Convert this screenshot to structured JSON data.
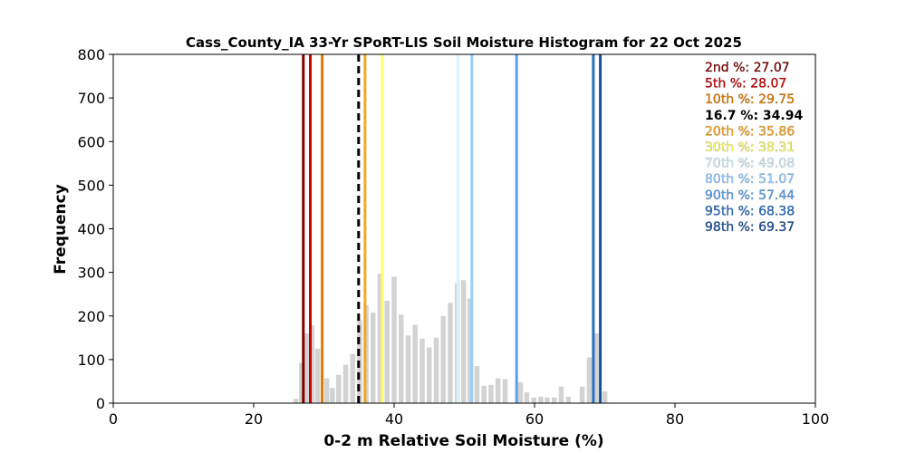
{
  "chart_data": {
    "type": "bar",
    "title": "Cass_County_IA 33-Yr SPoRT-LIS Soil Moisture Histogram for 22 Oct 2025",
    "xlabel": "0-2 m Relative Soil Moisture (%)",
    "ylabel": "Frequency",
    "xlim": [
      0,
      100
    ],
    "ylim": [
      0,
      800
    ],
    "x_ticks": [
      "0",
      "20",
      "40",
      "60",
      "80",
      "100"
    ],
    "y_ticks": [
      "0",
      "100",
      "200",
      "300",
      "400",
      "500",
      "600",
      "700",
      "800"
    ],
    "bar_color": "#d3d3d3",
    "bins": [
      {
        "x": 26.0,
        "value": 10
      },
      {
        "x": 26.8,
        "value": 92
      },
      {
        "x": 27.5,
        "value": 160
      },
      {
        "x": 28.3,
        "value": 178
      },
      {
        "x": 29.1,
        "value": 125
      },
      {
        "x": 30.4,
        "value": 57
      },
      {
        "x": 31.2,
        "value": 35
      },
      {
        "x": 32.1,
        "value": 65
      },
      {
        "x": 33.1,
        "value": 88
      },
      {
        "x": 34.1,
        "value": 113
      },
      {
        "x": 35.1,
        "value": 190
      },
      {
        "x": 36.0,
        "value": 225
      },
      {
        "x": 37.0,
        "value": 208
      },
      {
        "x": 38.0,
        "value": 297
      },
      {
        "x": 39.0,
        "value": 235
      },
      {
        "x": 40.0,
        "value": 290
      },
      {
        "x": 41.0,
        "value": 203
      },
      {
        "x": 42.0,
        "value": 155
      },
      {
        "x": 43.0,
        "value": 180
      },
      {
        "x": 44.0,
        "value": 148
      },
      {
        "x": 45.0,
        "value": 128
      },
      {
        "x": 46.0,
        "value": 150
      },
      {
        "x": 47.0,
        "value": 200
      },
      {
        "x": 48.0,
        "value": 230
      },
      {
        "x": 49.0,
        "value": 275
      },
      {
        "x": 49.9,
        "value": 282
      },
      {
        "x": 50.8,
        "value": 240
      },
      {
        "x": 51.8,
        "value": 85
      },
      {
        "x": 52.8,
        "value": 40
      },
      {
        "x": 53.8,
        "value": 42
      },
      {
        "x": 54.8,
        "value": 57
      },
      {
        "x": 55.8,
        "value": 55
      },
      {
        "x": 57.0,
        "value": 0
      },
      {
        "x": 58.0,
        "value": 48
      },
      {
        "x": 58.9,
        "value": 25
      },
      {
        "x": 59.9,
        "value": 13
      },
      {
        "x": 60.9,
        "value": 15
      },
      {
        "x": 61.8,
        "value": 13
      },
      {
        "x": 62.8,
        "value": 13
      },
      {
        "x": 63.8,
        "value": 38
      },
      {
        "x": 64.8,
        "value": 15
      },
      {
        "x": 66.8,
        "value": 38
      },
      {
        "x": 67.8,
        "value": 105
      },
      {
        "x": 68.8,
        "value": 160
      },
      {
        "x": 70.0,
        "value": 27
      }
    ],
    "percentiles": [
      {
        "label": "2nd %",
        "value": "27.07",
        "x": 27.07,
        "color": "#800000",
        "style": "solid"
      },
      {
        "label": "5th %",
        "value": "28.07",
        "x": 28.07,
        "color": "#cc0000",
        "style": "solid"
      },
      {
        "label": "10th %",
        "value": "29.75",
        "x": 29.75,
        "color": "#e07b00",
        "style": "solid"
      },
      {
        "label": "16.7 %",
        "value": "34.94",
        "x": 34.94,
        "color": "#000000",
        "style": "dashed"
      },
      {
        "label": "20th %",
        "value": "35.86",
        "x": 35.86,
        "color": "#f5a623",
        "style": "solid"
      },
      {
        "label": "30th %",
        "value": "38.31",
        "x": 38.31,
        "color": "#ffff66",
        "style": "solid"
      },
      {
        "label": "70th %",
        "value": "49.08",
        "x": 49.08,
        "color": "#d9f1ff",
        "style": "solid"
      },
      {
        "label": "80th %",
        "value": "51.07",
        "x": 51.07,
        "color": "#99ccff",
        "style": "solid"
      },
      {
        "label": "90th %",
        "value": "57.44",
        "x": 57.44,
        "color": "#5aa0e8",
        "style": "solid"
      },
      {
        "label": "95th %",
        "value": "68.38",
        "x": 68.38,
        "color": "#2a6ebf",
        "style": "solid"
      },
      {
        "label": "98th %",
        "value": "69.37",
        "x": 69.37,
        "color": "#1a4f99",
        "style": "solid"
      }
    ]
  }
}
